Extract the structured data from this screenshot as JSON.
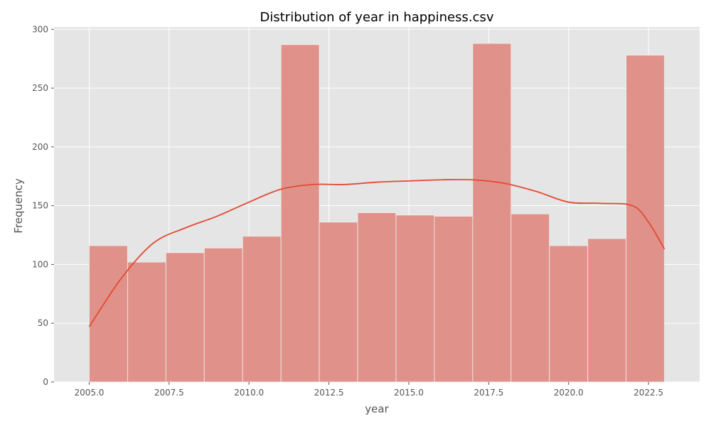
{
  "chart_data": {
    "type": "bar",
    "title": "Distribution of year in happiness.csv",
    "xlabel": "year",
    "ylabel": "Frequency",
    "bin_edges": [
      2005.0,
      2006.2,
      2007.4,
      2008.6,
      2009.8,
      2011.0,
      2012.2,
      2013.4,
      2014.6,
      2015.8,
      2017.0,
      2018.2,
      2019.4,
      2020.6,
      2021.8,
      2023.0
    ],
    "values": [
      116,
      102,
      110,
      114,
      124,
      287,
      136,
      144,
      142,
      141,
      288,
      143,
      116,
      122,
      278
    ],
    "kde": {
      "x": [
        2005.0,
        2006.0,
        2007.0,
        2008.0,
        2009.0,
        2010.0,
        2011.0,
        2012.0,
        2013.0,
        2014.0,
        2015.0,
        2016.0,
        2017.0,
        2018.0,
        2019.0,
        2020.0,
        2021.0,
        2022.0,
        2022.5,
        2023.0
      ],
      "y": [
        47,
        88,
        118,
        131,
        141,
        153,
        164,
        168,
        168,
        170,
        171,
        172,
        172,
        169,
        162,
        153,
        152,
        150,
        136,
        113
      ]
    },
    "xlim": [
      2003.9,
      2024.1
    ],
    "ylim": [
      0,
      302
    ],
    "xticks": [
      2005.0,
      2007.5,
      2010.0,
      2012.5,
      2015.0,
      2017.5,
      2020.0,
      2022.5
    ],
    "xtick_labels": [
      "2005.0",
      "2007.5",
      "2010.0",
      "2012.5",
      "2015.0",
      "2017.5",
      "2020.0",
      "2022.5"
    ],
    "yticks": [
      0,
      50,
      100,
      150,
      200,
      250,
      300
    ],
    "ytick_labels": [
      "0",
      "50",
      "100",
      "150",
      "200",
      "250",
      "300"
    ],
    "grid": true,
    "colors": {
      "bar": "#e0928a",
      "line": "#e24a33",
      "background": "#e5e5e5",
      "grid": "#ffffff"
    }
  }
}
